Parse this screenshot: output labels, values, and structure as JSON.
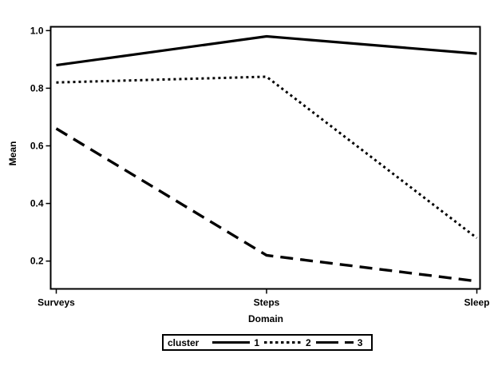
{
  "chart_data": {
    "type": "line",
    "title": "",
    "xlabel": "Domain",
    "ylabel": "Mean",
    "categories": [
      "Surveys",
      "Steps",
      "Sleep"
    ],
    "series": [
      {
        "name": "1",
        "line_style": "solid",
        "values": [
          0.88,
          0.98,
          0.92
        ]
      },
      {
        "name": "2",
        "line_style": "dotted",
        "values": [
          0.82,
          0.84,
          0.28
        ]
      },
      {
        "name": "3",
        "line_style": "dashed",
        "values": [
          0.66,
          0.22,
          0.13
        ]
      }
    ],
    "ytick_labels": [
      "1.0",
      "0.8",
      "0.6",
      "0.4",
      "0.2"
    ],
    "ylim": [
      0.1,
      1.01
    ],
    "grid": false,
    "legend_title": "cluster",
    "legend_position": "bottom",
    "line_color": "#000000",
    "background_color": "#ffffff"
  }
}
